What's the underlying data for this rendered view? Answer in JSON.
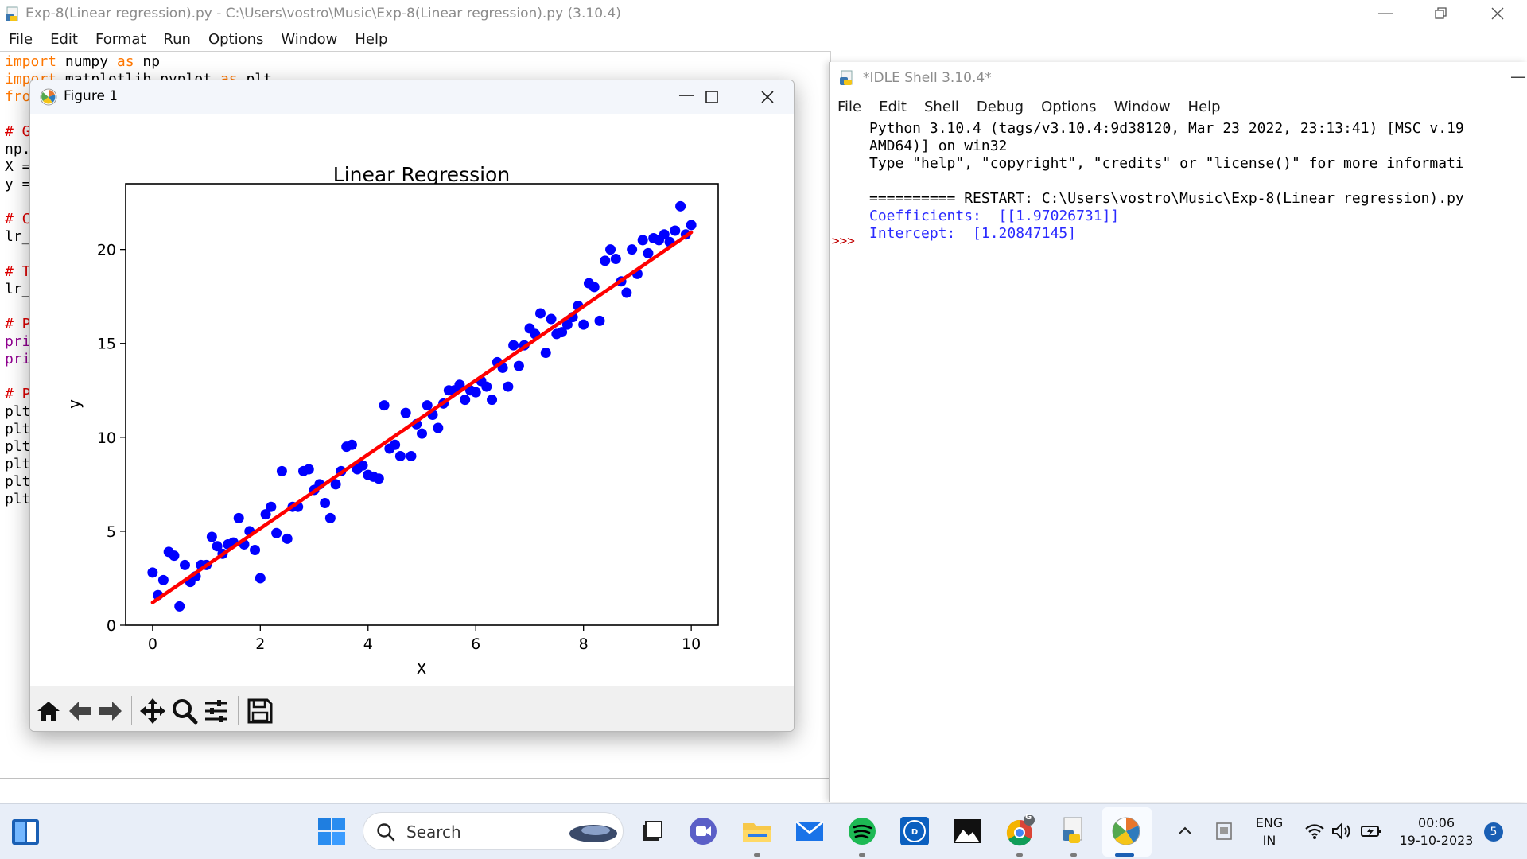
{
  "editor": {
    "title": "Exp-8(Linear regression).py - C:\\Users\\vostro\\Music\\Exp-8(Linear regression).py (3.10.4)",
    "menu": [
      "File",
      "Edit",
      "Format",
      "Run",
      "Options",
      "Window",
      "Help"
    ],
    "code": {
      "l1_kw": "import",
      "l1_rest": " numpy ",
      "l1_as": "as",
      "l1_np": " np",
      "l2_kw": "import",
      "l2_rest": " matplotlib.pyplot ",
      "l2_as": "as",
      "l2_plt": " plt",
      "l3": "fro",
      "l5": "# G",
      "l6": "np.",
      "l7": "X =",
      "l8": "y =",
      "l10": "# C",
      "l11": "lr_",
      "l13": "# T",
      "l14": "lr_",
      "l16": "# P",
      "l17": "pri",
      "l18": "pri",
      "l20": "# P",
      "l21": "plt",
      "l22": "plt",
      "l23": "plt",
      "l24": "plt",
      "l25": "plt",
      "l26": "plt"
    }
  },
  "shell": {
    "title": "*IDLE Shell 3.10.4*",
    "menu": [
      "File",
      "Edit",
      "Shell",
      "Debug",
      "Options",
      "Window",
      "Help"
    ],
    "prompt": ">>>",
    "lines": {
      "l1": "Python 3.10.4 (tags/v3.10.4:9d38120, Mar 23 2022, 23:13:41) [MSC v.19",
      "l2": "AMD64)] on win32",
      "l3": "Type \"help\", \"copyright\", \"credits\" or \"license()\" for more informati",
      "l4": "========== RESTART: C:\\Users\\vostro\\Music\\Exp-8(Linear regression).py",
      "l5": "Coefficients:  [[1.97026731]]",
      "l6": "Intercept:  [1.20847145]"
    }
  },
  "figure": {
    "title": "Figure 1",
    "toolbar": [
      "home-icon",
      "back-arrow-icon",
      "forward-arrow-icon",
      "pan-icon",
      "zoom-icon",
      "configure-icon",
      "save-icon"
    ]
  },
  "chart_data": {
    "type": "scatter",
    "title": "Linear Regression",
    "xlabel": "X",
    "ylabel": "y",
    "xlim": [
      -0.5,
      10.5
    ],
    "ylim": [
      0,
      23.5
    ],
    "xticks": [
      0,
      2,
      4,
      6,
      8,
      10
    ],
    "yticks": [
      0,
      5,
      10,
      15,
      20
    ],
    "grid": false,
    "series": [
      {
        "type": "scatter",
        "color": "#0000ff",
        "x": [
          0.0,
          0.1,
          0.2,
          0.3,
          0.4,
          0.5,
          0.6,
          0.7,
          0.8,
          0.9,
          1.0,
          1.1,
          1.2,
          1.3,
          1.4,
          1.5,
          1.6,
          1.7,
          1.8,
          1.9,
          2.0,
          2.1,
          2.2,
          2.3,
          2.4,
          2.5,
          2.6,
          2.7,
          2.8,
          2.9,
          3.0,
          3.1,
          3.2,
          3.3,
          3.4,
          3.5,
          3.6,
          3.7,
          3.8,
          3.9,
          4.0,
          4.1,
          4.2,
          4.3,
          4.4,
          4.5,
          4.6,
          4.7,
          4.8,
          4.9,
          5.0,
          5.1,
          5.2,
          5.3,
          5.4,
          5.5,
          5.6,
          5.7,
          5.8,
          5.9,
          6.0,
          6.1,
          6.2,
          6.3,
          6.4,
          6.5,
          6.6,
          6.7,
          6.8,
          6.9,
          7.0,
          7.1,
          7.2,
          7.3,
          7.4,
          7.5,
          7.6,
          7.7,
          7.8,
          7.9,
          8.0,
          8.1,
          8.2,
          8.3,
          8.4,
          8.5,
          8.6,
          8.7,
          8.8,
          8.9,
          9.0,
          9.1,
          9.2,
          9.3,
          9.4,
          9.5,
          9.6,
          9.7,
          9.8,
          9.9,
          10.0
        ],
        "y": [
          2.8,
          1.6,
          2.4,
          3.9,
          3.7,
          1.0,
          3.2,
          2.3,
          2.6,
          3.2,
          3.2,
          4.7,
          4.2,
          3.8,
          4.3,
          4.4,
          5.7,
          4.3,
          5.0,
          4.0,
          2.5,
          5.9,
          6.3,
          4.9,
          8.2,
          4.6,
          6.3,
          6.3,
          8.2,
          8.3,
          7.2,
          7.5,
          6.5,
          5.7,
          7.5,
          8.2,
          9.5,
          9.6,
          8.3,
          8.5,
          8.0,
          7.9,
          7.8,
          11.7,
          9.4,
          9.6,
          9.0,
          11.3,
          9.0,
          10.7,
          10.2,
          11.7,
          11.2,
          10.5,
          11.8,
          12.5,
          12.5,
          12.8,
          12.0,
          12.5,
          12.4,
          13.0,
          12.7,
          12.0,
          14.0,
          13.7,
          12.7,
          14.9,
          13.8,
          14.9,
          15.8,
          15.5,
          16.6,
          14.5,
          16.3,
          15.5,
          15.6,
          16.0,
          16.4,
          17.0,
          16.0,
          18.2,
          18.0,
          16.2,
          19.4,
          20.0,
          19.5,
          18.3,
          17.7,
          20.0,
          18.7,
          20.5,
          19.8,
          20.6,
          20.5,
          20.8,
          20.4,
          21.0,
          22.3,
          20.8,
          21.3
        ]
      },
      {
        "type": "line",
        "color": "#ff0000",
        "x": [
          0,
          10
        ],
        "y": [
          1.208,
          20.911
        ]
      }
    ]
  },
  "taskbar": {
    "search_label": "Search",
    "lang_top": "ENG",
    "lang_bottom": "IN",
    "time": "00:06",
    "date": "19-10-2023",
    "notification_count": "5",
    "chrome_badge": "G"
  },
  "colors": {
    "keyword": "#ff7700",
    "comment": "#dd0000",
    "builtin": "#900090",
    "shell_output": "#2a2aff"
  }
}
